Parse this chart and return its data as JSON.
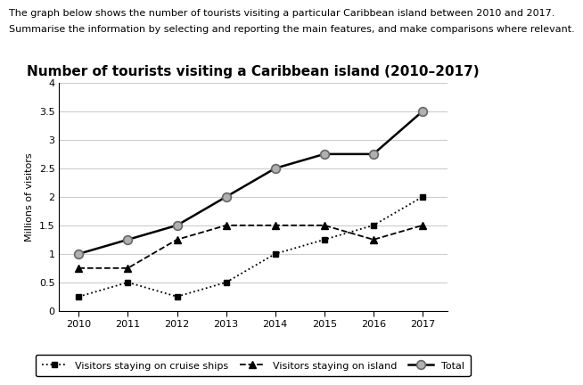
{
  "title": "Number of tourists visiting a Caribbean island (2010–2017)",
  "header_line1": "The graph below shows the number of tourists visiting a particular Caribbean island between 2010 and 2017.",
  "header_line2": "Summarise the information by selecting and reporting the main features, and make comparisons where relevant.",
  "ylabel": "Millions of visitors",
  "years": [
    2010,
    2011,
    2012,
    2013,
    2014,
    2015,
    2016,
    2017
  ],
  "cruise_ships": [
    0.25,
    0.5,
    0.25,
    0.5,
    1.0,
    1.25,
    1.5,
    2.0
  ],
  "on_island": [
    0.75,
    0.75,
    1.25,
    1.5,
    1.5,
    1.5,
    1.25,
    1.5
  ],
  "total": [
    1.0,
    1.25,
    1.5,
    2.0,
    2.5,
    2.75,
    2.75,
    3.5
  ],
  "ylim": [
    0,
    4
  ],
  "yticks": [
    0,
    0.5,
    1.0,
    1.5,
    2.0,
    2.5,
    3.0,
    3.5,
    4.0
  ],
  "grid_color": "#cccccc",
  "title_fontsize": 11,
  "tick_fontsize": 8,
  "ylabel_fontsize": 8,
  "header_fontsize": 8,
  "legend_fontsize": 8
}
